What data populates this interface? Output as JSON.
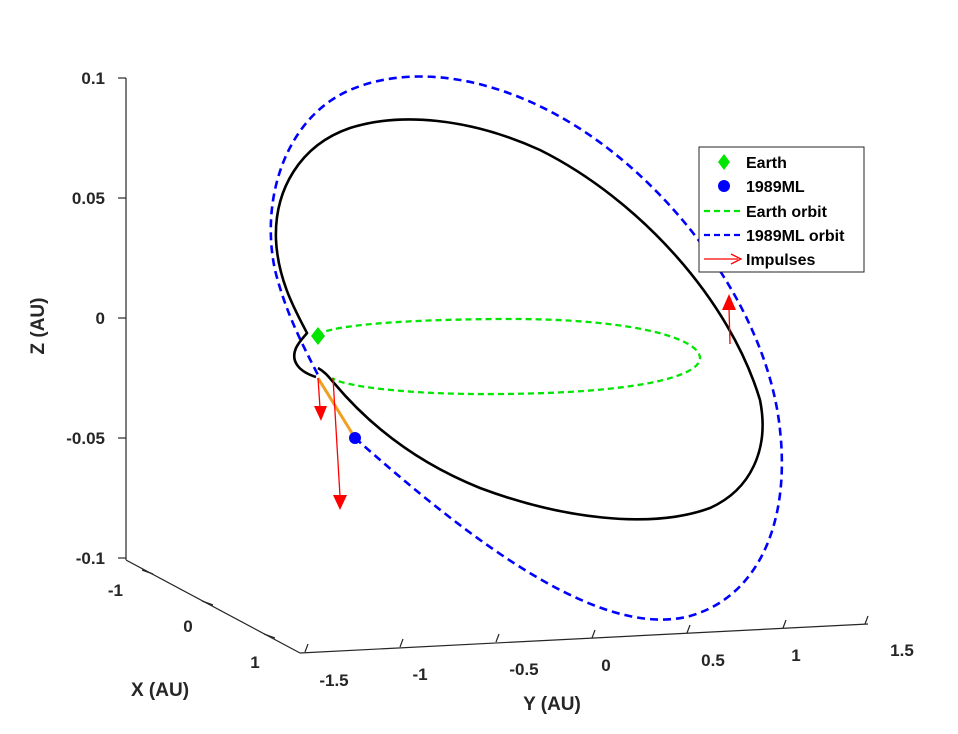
{
  "chart_data": {
    "type": "line",
    "view": "3d",
    "title": "",
    "xlabel": "X (AU)",
    "ylabel": "Y (AU)",
    "zlabel": "Z (AU)",
    "xlim": [
      -1.2,
      1.2
    ],
    "ylim": [
      -1.6,
      1.6
    ],
    "zlim": [
      -0.1,
      0.1
    ],
    "x_ticks": [
      {
        "value": -1,
        "label": "-1"
      },
      {
        "value": 0,
        "label": "0"
      },
      {
        "value": 1,
        "label": "1"
      }
    ],
    "y_ticks": [
      {
        "value": -1.5,
        "label": "-1.5"
      },
      {
        "value": -1,
        "label": "-1"
      },
      {
        "value": -0.5,
        "label": "-0.5"
      },
      {
        "value": 0,
        "label": "0"
      },
      {
        "value": 0.5,
        "label": "0.5"
      },
      {
        "value": 1,
        "label": "1"
      },
      {
        "value": 1.5,
        "label": "1.5"
      }
    ],
    "z_ticks": [
      {
        "value": 0.1,
        "label": "0.1"
      },
      {
        "value": 0.05,
        "label": "0.05"
      },
      {
        "value": 0,
        "label": "0"
      },
      {
        "value": -0.05,
        "label": "-0.05"
      },
      {
        "value": -0.1,
        "label": "-0.1"
      }
    ],
    "grid": false,
    "legend_position": "right",
    "legend": [
      {
        "label": "Earth",
        "marker": "diamond",
        "color": "#00e600"
      },
      {
        "label": "1989ML",
        "marker": "circle",
        "color": "#0000ff"
      },
      {
        "label": "Earth orbit",
        "line": "dashed",
        "color": "#00e600"
      },
      {
        "label": "1989ML orbit",
        "line": "dashed",
        "color": "#0000ff"
      },
      {
        "label": "Impulses",
        "line": "arrow",
        "color": "#ff0000"
      }
    ],
    "series": [
      {
        "name": "Earth orbit",
        "kind": "ellipse",
        "color": "#00e600",
        "style": "dashed",
        "semi_axis_au": 1.0,
        "inclination_deg": 0
      },
      {
        "name": "1989ML orbit",
        "kind": "ellipse",
        "color": "#0000ff",
        "style": "dashed",
        "semi_major_axis_au": 1.27,
        "inclination_deg": 4.4
      },
      {
        "kind": "transfer trajectory",
        "color": "#000000",
        "style": "solid"
      },
      {
        "kind": "final arc",
        "color": "#f0a020",
        "style": "solid"
      }
    ],
    "points": [
      {
        "name": "Earth",
        "x": 0.3,
        "y": -1.2,
        "z": 0.0
      },
      {
        "name": "1989ML",
        "x": 0.5,
        "y": -0.9,
        "z": -0.05
      }
    ],
    "impulses": [
      {
        "at_y": -1.25,
        "dz": -0.01
      },
      {
        "at_y": -1.1,
        "dz": -0.05
      },
      {
        "at_y": 0.7,
        "dz": 0.02
      }
    ]
  }
}
